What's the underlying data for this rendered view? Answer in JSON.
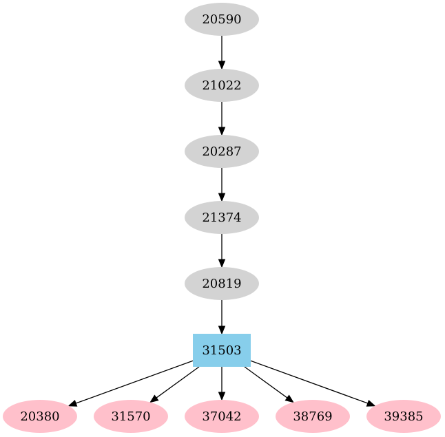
{
  "colors": {
    "ancestor_fill": "#d3d3d3",
    "focus_fill": "#87ceeb",
    "child_fill": "#ffc0cb",
    "edge": "#000000",
    "background": "#ffffff"
  },
  "nodes": [
    {
      "id": "20590",
      "label": "20590",
      "role": "ancestor",
      "shape": "ellipse"
    },
    {
      "id": "21022",
      "label": "21022",
      "role": "ancestor",
      "shape": "ellipse"
    },
    {
      "id": "20287",
      "label": "20287",
      "role": "ancestor",
      "shape": "ellipse"
    },
    {
      "id": "21374",
      "label": "21374",
      "role": "ancestor",
      "shape": "ellipse"
    },
    {
      "id": "20819",
      "label": "20819",
      "role": "ancestor",
      "shape": "ellipse"
    },
    {
      "id": "31503",
      "label": "31503",
      "role": "focus",
      "shape": "box"
    },
    {
      "id": "20380",
      "label": "20380",
      "role": "child",
      "shape": "ellipse"
    },
    {
      "id": "31570",
      "label": "31570",
      "role": "child",
      "shape": "ellipse"
    },
    {
      "id": "37042",
      "label": "37042",
      "role": "child",
      "shape": "ellipse"
    },
    {
      "id": "38769",
      "label": "38769",
      "role": "child",
      "shape": "ellipse"
    },
    {
      "id": "39385",
      "label": "39385",
      "role": "child",
      "shape": "ellipse"
    }
  ],
  "edges": [
    {
      "from": "20590",
      "to": "21022"
    },
    {
      "from": "21022",
      "to": "20287"
    },
    {
      "from": "20287",
      "to": "21374"
    },
    {
      "from": "21374",
      "to": "20819"
    },
    {
      "from": "20819",
      "to": "31503"
    },
    {
      "from": "31503",
      "to": "20380"
    },
    {
      "from": "31503",
      "to": "31570"
    },
    {
      "from": "31503",
      "to": "37042"
    },
    {
      "from": "31503",
      "to": "38769"
    },
    {
      "from": "31503",
      "to": "39385"
    }
  ]
}
